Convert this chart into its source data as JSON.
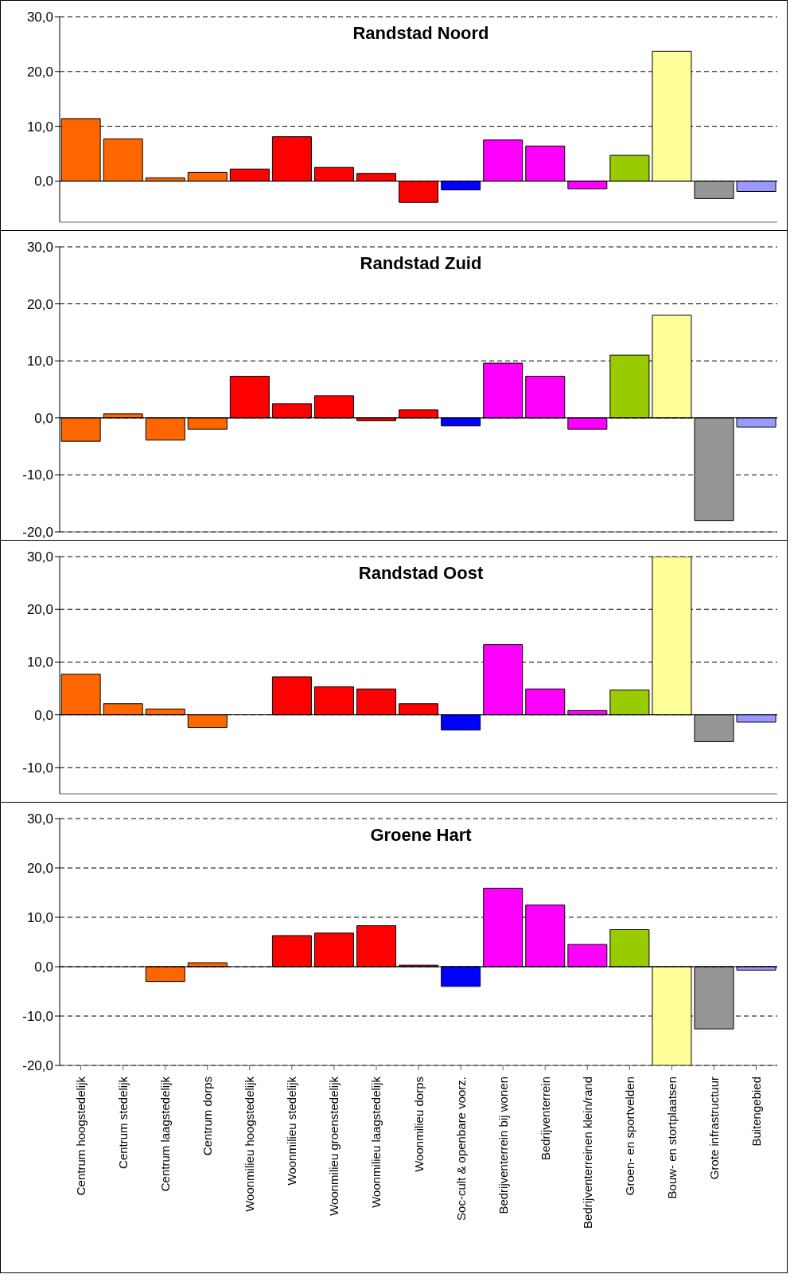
{
  "chart_data": [
    {
      "type": "bar",
      "title": "Randstad Noord",
      "categories": [
        null,
        null,
        null,
        null,
        null,
        null,
        null,
        null,
        null,
        null,
        null,
        null,
        null,
        null,
        null,
        null,
        null
      ],
      "values": [
        11.4,
        7.7,
        0.6,
        1.6,
        2.2,
        8.1,
        2.5,
        1.4,
        -3.9,
        -1.6,
        7.5,
        6.4,
        -1.4,
        4.7,
        23.7,
        -3.2,
        -1.9
      ],
      "colors": [
        "#ff6600",
        "#ff6600",
        "#ff6600",
        "#ff6600",
        "#ff0000",
        "#ff0000",
        "#ff0000",
        "#ff0000",
        "#ff0000",
        "#0000ff",
        "#ff00ff",
        "#ff00ff",
        "#ff00ff",
        "#99cc00",
        "#ffff99",
        "#969696",
        "#9999ff"
      ],
      "ylim": [
        -7.5,
        30
      ],
      "yticks": [
        {
          "value": 0,
          "label": "0,0"
        },
        {
          "value": 10,
          "label": "10,0"
        },
        {
          "value": 20,
          "label": "20,0"
        },
        {
          "value": 30,
          "label": "30,0"
        }
      ],
      "grid": "y",
      "tick_labels": "y"
    },
    {
      "type": "bar",
      "title": "Randstad Zuid",
      "categories": [
        null,
        null,
        null,
        null,
        null,
        null,
        null,
        null,
        null,
        null,
        null,
        null,
        null,
        null,
        null,
        null,
        null
      ],
      "values": [
        -4.1,
        0.7,
        -3.9,
        -2.0,
        7.3,
        2.5,
        3.9,
        -0.5,
        1.4,
        -1.4,
        9.6,
        7.3,
        -2.0,
        11.0,
        18.0,
        -18.0,
        -1.6
      ],
      "colors": [
        "#ff6600",
        "#ff6600",
        "#ff6600",
        "#ff6600",
        "#ff0000",
        "#ff0000",
        "#ff0000",
        "#ff0000",
        "#ff0000",
        "#0000ff",
        "#ff00ff",
        "#ff00ff",
        "#ff00ff",
        "#99cc00",
        "#ffff99",
        "#969696",
        "#9999ff"
      ],
      "ylim": [
        -20,
        30
      ],
      "yticks": [
        {
          "value": -20,
          "label": "-20,0"
        },
        {
          "value": -10,
          "label": "-10,0"
        },
        {
          "value": 0,
          "label": "0,0"
        },
        {
          "value": 10,
          "label": "10,0"
        },
        {
          "value": 20,
          "label": "20,0"
        },
        {
          "value": 30,
          "label": "30,0"
        }
      ],
      "grid": "y",
      "tick_labels": "y"
    },
    {
      "type": "bar",
      "title": "Randstad Oost",
      "categories": [
        null,
        null,
        null,
        null,
        null,
        null,
        null,
        null,
        null,
        null,
        null,
        null,
        null,
        null,
        null,
        null,
        null
      ],
      "values": [
        7.7,
        2.1,
        1.1,
        -2.4,
        0,
        7.2,
        5.3,
        4.9,
        2.1,
        -2.9,
        13.3,
        4.9,
        0.8,
        4.7,
        30,
        -5.1,
        -1.4
      ],
      "colors": [
        "#ff6600",
        "#ff6600",
        "#ff6600",
        "#ff6600",
        "#ff0000",
        "#ff0000",
        "#ff0000",
        "#ff0000",
        "#ff0000",
        "#0000ff",
        "#ff00ff",
        "#ff00ff",
        "#ff00ff",
        "#99cc00",
        "#ffff99",
        "#969696",
        "#9999ff"
      ],
      "ylim": [
        -15,
        30
      ],
      "yticks": [
        {
          "value": -10,
          "label": "-10,0"
        },
        {
          "value": 0,
          "label": "0,0"
        },
        {
          "value": 10,
          "label": "10,0"
        },
        {
          "value": 20,
          "label": "20,0"
        },
        {
          "value": 30,
          "label": "30,0"
        }
      ],
      "grid": "y",
      "tick_labels": "y"
    },
    {
      "type": "bar",
      "title": "Groene Hart",
      "categories": [
        "Centrum hoogstedelijk",
        "Centrum stedelijk",
        "Centrum laagstedelijk",
        "Centrum dorps",
        "Woonmilieu hoogstedelijk",
        "Woonmilieu stedelijk",
        "Woonmilieu groenstedelijk",
        "Woonmilieu laagstedelijk",
        "Woonmilieu dorps",
        "Soc-cult & openbare voorz.",
        "Bedrijventerrein bij wonen",
        "Bedrijventerrein",
        "Bedrijventerreinen klein/rand",
        "Groen- en sportvelden",
        "Bouw- en stortplaatsen",
        "Grote infrastructuur",
        "Buitengebied"
      ],
      "values": [
        0,
        0,
        -3.0,
        0.8,
        0,
        6.3,
        6.8,
        8.3,
        0.3,
        -4.0,
        15.9,
        12.5,
        4.5,
        7.5,
        -20,
        -12.6,
        -0.7
      ],
      "colors": [
        "#ff6600",
        "#ff6600",
        "#ff6600",
        "#ff6600",
        "#ff0000",
        "#ff0000",
        "#ff0000",
        "#ff0000",
        "#ff0000",
        "#0000ff",
        "#ff00ff",
        "#ff00ff",
        "#ff00ff",
        "#99cc00",
        "#ffff99",
        "#969696",
        "#9999ff"
      ],
      "ylim": [
        -20,
        30
      ],
      "yticks": [
        {
          "value": -20,
          "label": "-20,0"
        },
        {
          "value": -10,
          "label": "-10,0"
        },
        {
          "value": 0,
          "label": "0,0"
        },
        {
          "value": 10,
          "label": "10,0"
        },
        {
          "value": 20,
          "label": "20,0"
        },
        {
          "value": 30,
          "label": "30,0"
        }
      ],
      "grid": "y"
    }
  ]
}
